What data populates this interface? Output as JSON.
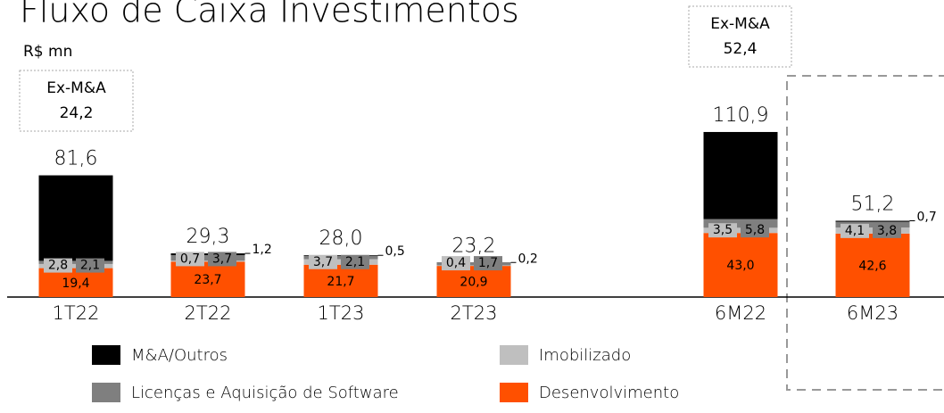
{
  "chart_data": {
    "type": "stacked_bar",
    "title": "Fluxo de Caixa Investimentos",
    "subtitle": "R$ mn",
    "categories": [
      "1T22",
      "2T22",
      "1T23",
      "2T23",
      "6M22",
      "6M23"
    ],
    "series": [
      {
        "name": "Desenvolvimento",
        "color": "#ff5000",
        "values": [
          19.4,
          23.7,
          21.7,
          20.9,
          43.0,
          42.6
        ],
        "value_labels": [
          "19,4",
          "23,7",
          "21,7",
          "20,9",
          "43,0",
          "42,6"
        ]
      },
      {
        "name": "Imobilizado",
        "color": "#bfbfbf",
        "values": [
          2.8,
          0.7,
          3.7,
          0.4,
          3.5,
          4.1
        ],
        "value_labels": [
          "2,8",
          "0,7",
          "3,7",
          "0,4",
          "3,5",
          "4,1"
        ]
      },
      {
        "name": "Licenças e Aquisição de Software",
        "color": "#7f7f7f",
        "values": [
          2.1,
          3.7,
          2.1,
          1.7,
          5.8,
          3.8
        ],
        "value_labels": [
          "2,1",
          "3,7",
          "2,1",
          "1,7",
          "5,8",
          "3,8"
        ]
      },
      {
        "name": "M&A/Outros",
        "color": "#000000",
        "values": [
          57.4,
          1.2,
          0.5,
          0.2,
          58.5,
          0.7
        ],
        "value_labels": [
          "57,4",
          "1,2",
          "0,5",
          "0,2",
          "58,5",
          "0,7"
        ]
      }
    ],
    "totals": {
      "values": [
        81.6,
        29.3,
        28.0,
        23.2,
        110.9,
        51.2
      ],
      "value_labels": [
        "81,6",
        "29,3",
        "28,0",
        "23,2",
        "110,9",
        "51,2"
      ]
    },
    "annotations": [
      {
        "category": "1T22",
        "label": "Ex-M&A",
        "value": 24.2,
        "value_label": "24,2"
      },
      {
        "category": "6M22",
        "label": "Ex-M&A",
        "value": 52.4,
        "value_label": "52,4"
      }
    ]
  }
}
